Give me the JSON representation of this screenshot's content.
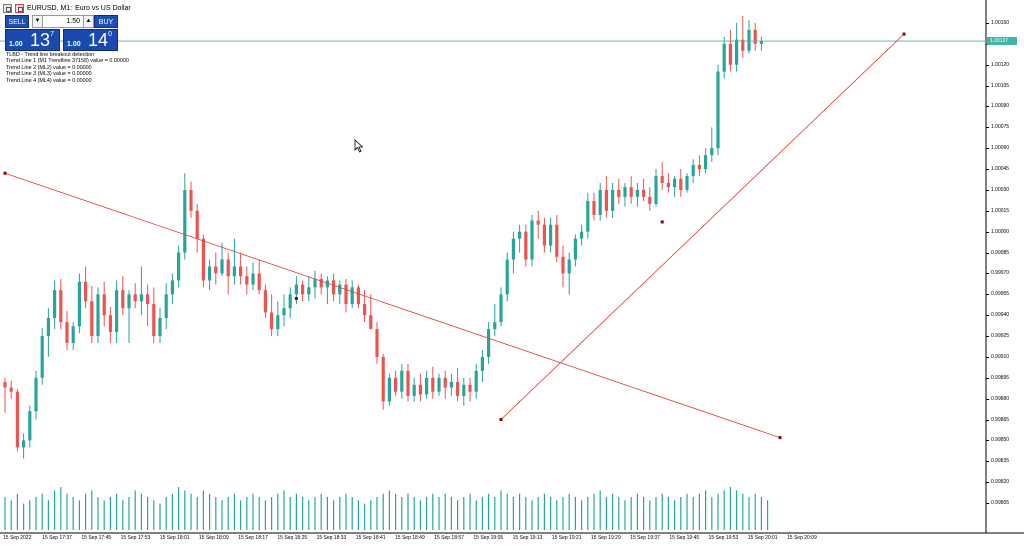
{
  "title": {
    "symbol_line": "EURUSD, M1:",
    "description": "Euro vs US Dollar"
  },
  "trade_panel": {
    "sell_label": "SELL",
    "buy_label": "BUY",
    "lot_value": "1.50",
    "lot_down_icon": "▼",
    "lot_up_icon": "▲",
    "sell_price": {
      "prefix": "1.00",
      "big": "13",
      "sup": "7"
    },
    "buy_price": {
      "prefix": "1.00",
      "big": "14",
      "sup": "0"
    }
  },
  "info_lines": [
    "TLBD - Trend line breakout detection",
    "Trend Line 1 (M1 Trendline 37158) value = 0.00000",
    "Trend Line 2 (ML2) value = 0.00000",
    "Trend Line 3 (ML3) value = 0.00000",
    "Trend Line 4 (ML4) value = 0.00000"
  ],
  "price_scale": {
    "labels": [
      "1.00150",
      "1.00135",
      "1.00120",
      "1.00105",
      "1.00090",
      "1.00075",
      "1.00060",
      "1.00045",
      "1.00030",
      "1.00015",
      "1.00000",
      "0.99985",
      "0.99970",
      "0.99955",
      "0.99940",
      "0.99925",
      "0.99910",
      "0.99895",
      "0.99880",
      "0.99865",
      "0.99850",
      "0.99835",
      "0.99820",
      "0.99805"
    ],
    "current_price": "1.00137"
  },
  "time_scale": {
    "labels": [
      "15 Sep 2022",
      "15 Sep 17:37",
      "15 Sep 17:45",
      "15 Sep 17:53",
      "15 Sep 18:01",
      "15 Sep 18:09",
      "15 Sep 18:17",
      "15 Sep 18:25",
      "15 Sep 18:33",
      "15 Sep 18:41",
      "15 Sep 18:49",
      "15 Sep 18:57",
      "15 Sep 19:05",
      "15 Sep 19:13",
      "15 Sep 19:21",
      "15 Sep 19:29",
      "15 Sep 19:37",
      "15 Sep 19:45",
      "15 Sep 19:53",
      "15 Sep 20:01",
      "15 Sep 20:09"
    ]
  },
  "colors": {
    "bull": "#26a69a",
    "bear": "#ef5350",
    "trendline": "#e53935",
    "volume": "#26a69a",
    "current_price_line": "#3db8a8",
    "background": "#ffffff"
  },
  "icons": {
    "cursor": "arrow-cursor-icon"
  },
  "chart_data": {
    "type": "candlestick",
    "y_min": 0.998,
    "y_max": 1.00155,
    "candles": [
      [
        0.99892,
        0.99895,
        0.9987,
        0.99888
      ],
      [
        0.99888,
        0.99893,
        0.9988,
        0.99885
      ],
      [
        0.99885,
        0.99887,
        0.99842,
        0.99845
      ],
      [
        0.99845,
        0.99855,
        0.99837,
        0.9985
      ],
      [
        0.9985,
        0.99875,
        0.99845,
        0.99871
      ],
      [
        0.99871,
        0.999,
        0.99865,
        0.99895
      ],
      [
        0.99895,
        0.99931,
        0.9989,
        0.99925
      ],
      [
        0.99925,
        0.99945,
        0.9991,
        0.99938
      ],
      [
        0.99938,
        0.99965,
        0.9993,
        0.99958
      ],
      [
        0.99958,
        0.99966,
        0.9993,
        0.99935
      ],
      [
        0.99935,
        0.99943,
        0.99915,
        0.9992
      ],
      [
        0.9992,
        0.99935,
        0.99915,
        0.99932
      ],
      [
        0.99932,
        0.9997,
        0.99927,
        0.99964
      ],
      [
        0.99964,
        0.99975,
        0.99945,
        0.9995
      ],
      [
        0.9995,
        0.99961,
        0.9992,
        0.99925
      ],
      [
        0.99925,
        0.9996,
        0.9992,
        0.99955
      ],
      [
        0.99955,
        0.99964,
        0.99932,
        0.9994
      ],
      [
        0.9994,
        0.99946,
        0.9992,
        0.99928
      ],
      [
        0.99928,
        0.99965,
        0.9992,
        0.99958
      ],
      [
        0.99958,
        0.99968,
        0.9994,
        0.99945
      ],
      [
        0.99945,
        0.99958,
        0.9992,
        0.99955
      ],
      [
        0.99955,
        0.99963,
        0.99945,
        0.9995
      ],
      [
        0.9995,
        0.99975,
        0.9994,
        0.99955
      ],
      [
        0.99955,
        0.99962,
        0.99932,
        0.99948
      ],
      [
        0.99948,
        0.9996,
        0.9992,
        0.99925
      ],
      [
        0.99925,
        0.99945,
        0.9992,
        0.99938
      ],
      [
        0.99938,
        0.99963,
        0.9993,
        0.99955
      ],
      [
        0.99955,
        0.9997,
        0.99948,
        0.99965
      ],
      [
        0.99965,
        0.9999,
        0.9996,
        0.99985
      ],
      [
        0.99985,
        1.00042,
        0.9998,
        1.0003
      ],
      [
        1.0003,
        1.00036,
        1.0001,
        1.00015
      ],
      [
        1.00015,
        1.0002,
        0.99985,
        0.99995
      ],
      [
        0.99995,
        0.99998,
        0.9996,
        0.99965
      ],
      [
        0.99965,
        0.9998,
        0.99958,
        0.99975
      ],
      [
        0.99975,
        0.99985,
        0.99962,
        0.9997
      ],
      [
        0.9997,
        0.99992,
        0.99968,
        0.9998
      ],
      [
        0.9998,
        0.99985,
        0.99955,
        0.99968
      ],
      [
        0.99968,
        0.99995,
        0.99962,
        0.99975
      ],
      [
        0.99975,
        0.99985,
        0.99962,
        0.99968
      ],
      [
        0.99968,
        0.99975,
        0.99955,
        0.99962
      ],
      [
        0.99962,
        0.99978,
        0.99958,
        0.9997
      ],
      [
        0.9997,
        0.9998,
        0.99955,
        0.99958
      ],
      [
        0.99958,
        0.99962,
        0.99938,
        0.99942
      ],
      [
        0.99942,
        0.99955,
        0.99925,
        0.9993
      ],
      [
        0.9993,
        0.9995,
        0.99925,
        0.9994
      ],
      [
        0.9994,
        0.99955,
        0.99932,
        0.99945
      ],
      [
        0.99945,
        0.9996,
        0.99938,
        0.99955
      ],
      [
        0.99955,
        0.99968,
        0.99948,
        0.99962
      ],
      [
        0.99962,
        0.99965,
        0.9995,
        0.99955
      ],
      [
        0.99955,
        0.99968,
        0.9995,
        0.9996
      ],
      [
        0.9996,
        0.99972,
        0.99952,
        0.99966
      ],
      [
        0.99966,
        0.9997,
        0.99955,
        0.9996
      ],
      [
        0.9996,
        0.99968,
        0.99948,
        0.99965
      ],
      [
        0.99965,
        0.9997,
        0.9995,
        0.99955
      ],
      [
        0.99955,
        0.99965,
        0.99948,
        0.99962
      ],
      [
        0.99962,
        0.99966,
        0.99942,
        0.99948
      ],
      [
        0.99948,
        0.99965,
        0.99945,
        0.9996
      ],
      [
        0.9996,
        0.99962,
        0.99945,
        0.99948
      ],
      [
        0.99948,
        0.99958,
        0.99935,
        0.9994
      ],
      [
        0.9994,
        0.99955,
        0.9993,
        0.9993
      ],
      [
        0.9993,
        0.99935,
        0.99905,
        0.9991
      ],
      [
        0.9991,
        0.99912,
        0.99872,
        0.99878
      ],
      [
        0.99878,
        0.99898,
        0.99875,
        0.99895
      ],
      [
        0.99895,
        0.999,
        0.99882,
        0.99885
      ],
      [
        0.99885,
        0.99905,
        0.9988,
        0.999
      ],
      [
        0.999,
        0.99905,
        0.99878,
        0.99882
      ],
      [
        0.99882,
        0.99895,
        0.99878,
        0.9989
      ],
      [
        0.9989,
        0.99898,
        0.99878,
        0.99883
      ],
      [
        0.99883,
        0.999,
        0.9988,
        0.99895
      ],
      [
        0.99895,
        0.99903,
        0.9988,
        0.99885
      ],
      [
        0.99885,
        0.99898,
        0.99882,
        0.99895
      ],
      [
        0.99895,
        0.999,
        0.9988,
        0.99888
      ],
      [
        0.99888,
        0.99898,
        0.99882,
        0.99892
      ],
      [
        0.99892,
        0.99902,
        0.99878,
        0.99882
      ],
      [
        0.99882,
        0.99895,
        0.99875,
        0.9989
      ],
      [
        0.9989,
        0.99895,
        0.99878,
        0.99885
      ],
      [
        0.99885,
        0.99905,
        0.9988,
        0.999
      ],
      [
        0.999,
        0.99915,
        0.99892,
        0.9991
      ],
      [
        0.9991,
        0.99935,
        0.99905,
        0.9993
      ],
      [
        0.9993,
        0.99948,
        0.99925,
        0.99935
      ],
      [
        0.99935,
        0.9996,
        0.99932,
        0.99955
      ],
      [
        0.99955,
        0.99985,
        0.9995,
        0.9998
      ],
      [
        0.9998,
        1.0,
        0.9997,
        0.99995
      ],
      [
        0.99995,
        1.00005,
        0.99985,
        1.0
      ],
      [
        1.0,
        1.00005,
        0.99975,
        0.9998
      ],
      [
        0.9998,
        1.00012,
        0.99975,
        1.00008
      ],
      [
        1.00008,
        1.00015,
        0.99995,
        1.00005
      ],
      [
        1.00005,
        1.0001,
        0.99985,
        0.9999
      ],
      [
        0.9999,
        1.0001,
        0.99985,
        1.00005
      ],
      [
        1.00005,
        1.00012,
        0.99978,
        0.99982
      ],
      [
        0.99982,
        0.9999,
        0.9996,
        0.9997
      ],
      [
        0.9997,
        0.99985,
        0.99955,
        0.9998
      ],
      [
        0.9998,
        0.99998,
        0.99975,
        0.99995
      ],
      [
        0.99995,
        1.00005,
        0.9999,
        1.0
      ],
      [
        1.0,
        1.00028,
        0.99995,
        1.00022
      ],
      [
        1.00022,
        1.00028,
        1.00008,
        1.00012
      ],
      [
        1.00012,
        1.00035,
        1.00008,
        1.0003
      ],
      [
        1.0003,
        1.0004,
        1.0001,
        1.00015
      ],
      [
        1.00015,
        1.00035,
        1.0001,
        1.0003
      ],
      [
        1.0003,
        1.00038,
        1.0002,
        1.00025
      ],
      [
        1.00025,
        1.00035,
        1.00018,
        1.00032
      ],
      [
        1.00032,
        1.0004,
        1.0002,
        1.00025
      ],
      [
        1.00025,
        1.00035,
        1.00018,
        1.0003
      ],
      [
        1.0003,
        1.00038,
        1.00022,
        1.00025
      ],
      [
        1.00025,
        1.00032,
        1.00015,
        1.0002
      ],
      [
        1.0002,
        1.00045,
        1.00018,
        1.0004
      ],
      [
        1.0004,
        1.0005,
        1.0003,
        1.00035
      ],
      [
        1.00035,
        1.00042,
        1.00028,
        1.00032
      ],
      [
        1.00032,
        1.0004,
        1.00025,
        1.00038
      ],
      [
        1.00038,
        1.00045,
        1.00025,
        1.0003
      ],
      [
        1.0003,
        1.00042,
        1.00028,
        1.0004
      ],
      [
        1.0004,
        1.00052,
        1.00035,
        1.00048
      ],
      [
        1.00048,
        1.00055,
        1.0004,
        1.00045
      ],
      [
        1.00045,
        1.0006,
        1.00042,
        1.00055
      ],
      [
        1.00055,
        1.00075,
        1.0005,
        1.0006
      ],
      [
        1.0006,
        1.0012,
        1.00055,
        1.00115
      ],
      [
        1.00115,
        1.0014,
        1.0011,
        1.00135
      ],
      [
        1.00135,
        1.00145,
        1.00115,
        1.0012
      ],
      [
        1.0012,
        1.0015,
        1.00115,
        1.00138
      ],
      [
        1.00138,
        1.00155,
        1.00125,
        1.0013
      ],
      [
        1.0013,
        1.00152,
        1.00128,
        1.00145
      ],
      [
        1.00145,
        1.0015,
        1.0013,
        1.00135
      ],
      [
        1.00135,
        1.0014,
        1.0013,
        1.00137
      ]
    ],
    "trendlines": [
      {
        "name": "Trend Line 1",
        "points": [
          [
            0,
            1.00042
          ],
          [
            47,
            0.99952
          ]
        ],
        "extend_to": [
          125,
          0.99852
        ]
      },
      {
        "name": "Trend Line 2",
        "points": [
          [
            80,
            0.99865
          ],
          [
            106,
            1.00007
          ]
        ],
        "extend_to": [
          145,
          1.00142
        ]
      }
    ],
    "volume": [
      10,
      9,
      11,
      8,
      9,
      10,
      11,
      9,
      12,
      13,
      11,
      10,
      9,
      11,
      12,
      10,
      9,
      10,
      11,
      9,
      10,
      12,
      11,
      10,
      9,
      8,
      10,
      11,
      13,
      12,
      11,
      10,
      12,
      11,
      10,
      9,
      10,
      11,
      9,
      10,
      11,
      10,
      9,
      10,
      11,
      12,
      10,
      11,
      10,
      9,
      10,
      11,
      10,
      9,
      10,
      11,
      10,
      9,
      8,
      9,
      10,
      11,
      12,
      11,
      10,
      11,
      10,
      9,
      10,
      11,
      10,
      11,
      10,
      9,
      10,
      11,
      9,
      10,
      11,
      10,
      12,
      11,
      10,
      11,
      10,
      9,
      10,
      11,
      10,
      9,
      10,
      11,
      10,
      9,
      10,
      11,
      12,
      10,
      11,
      10,
      9,
      10,
      11,
      10,
      9,
      10,
      11,
      10,
      9,
      10,
      11,
      10,
      11,
      12,
      10,
      11,
      12,
      13,
      12,
      11,
      10,
      11,
      10,
      9
    ]
  }
}
